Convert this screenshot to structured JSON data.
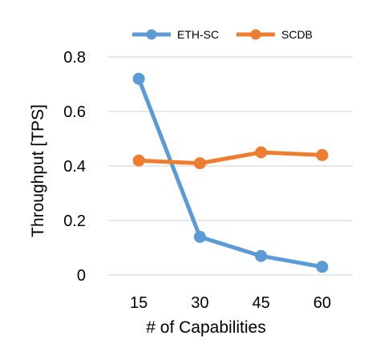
{
  "chart_data": {
    "type": "line",
    "title": "",
    "xlabel": "# of Capabilities",
    "ylabel": "Throughput [TPS]",
    "categories": [
      "15",
      "30",
      "45",
      "60"
    ],
    "ylim": [
      0,
      0.8
    ],
    "yticks": [
      "0",
      "0.2",
      "0.4",
      "0.6",
      "0.8"
    ],
    "grid": true,
    "legend_position": "top",
    "series": [
      {
        "name": "ETH-SC",
        "color": "#5B9BD5",
        "values": [
          0.72,
          0.14,
          0.07,
          0.03
        ]
      },
      {
        "name": "SCDB",
        "color": "#ED7D31",
        "values": [
          0.42,
          0.41,
          0.45,
          0.44
        ]
      }
    ]
  }
}
